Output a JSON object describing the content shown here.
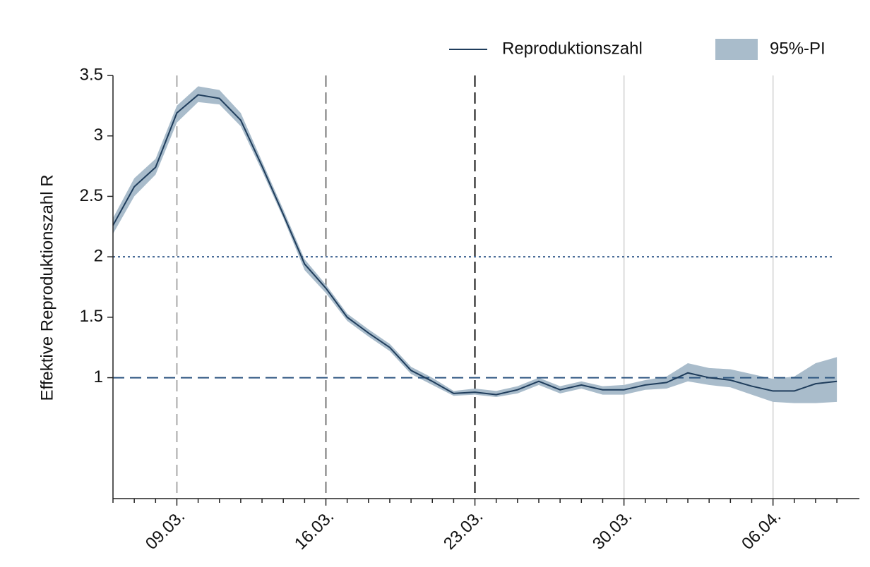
{
  "chart_data": {
    "type": "line",
    "y_label": "Effektive Reproduktionszahl R",
    "categories": [
      null,
      null,
      null,
      "09.03.",
      null,
      null,
      null,
      null,
      null,
      null,
      "16.03.",
      null,
      null,
      null,
      null,
      null,
      null,
      "23.03.",
      null,
      null,
      null,
      null,
      null,
      null,
      "30.03.",
      null,
      null,
      null,
      null,
      null,
      null,
      "06.04.",
      null,
      null,
      null
    ],
    "series": [
      {
        "name": "Reproduktionszahl",
        "color": "#1f3d5c",
        "values": [
          2.26,
          2.58,
          2.74,
          3.19,
          3.34,
          3.31,
          3.13,
          2.75,
          2.35,
          1.94,
          1.74,
          1.5,
          1.37,
          1.25,
          1.06,
          0.97,
          0.87,
          0.88,
          0.86,
          0.9,
          0.97,
          0.9,
          0.94,
          0.9,
          0.9,
          0.94,
          0.96,
          1.04,
          1.0,
          0.98,
          0.93,
          0.89,
          0.89,
          0.95,
          0.97
        ]
      }
    ],
    "band": {
      "name": "95%-PI",
      "color": "#a9bccb",
      "lower": [
        2.19,
        2.5,
        2.68,
        3.11,
        3.28,
        3.26,
        3.08,
        2.71,
        2.32,
        1.89,
        1.7,
        1.47,
        1.34,
        1.22,
        1.03,
        0.94,
        0.85,
        0.86,
        0.84,
        0.87,
        0.94,
        0.87,
        0.91,
        0.86,
        0.86,
        0.9,
        0.91,
        0.97,
        0.94,
        0.92,
        0.86,
        0.8,
        0.79,
        0.79,
        0.8
      ],
      "upper": [
        2.32,
        2.65,
        2.81,
        3.25,
        3.41,
        3.38,
        3.19,
        2.79,
        2.39,
        1.98,
        1.77,
        1.53,
        1.4,
        1.28,
        1.09,
        1.0,
        0.89,
        0.91,
        0.89,
        0.93,
        1.0,
        0.93,
        0.97,
        0.93,
        0.94,
        0.98,
        1.01,
        1.12,
        1.08,
        1.07,
        1.03,
        0.99,
        1.01,
        1.12,
        1.17
      ]
    },
    "ylim": [
      0,
      3.5
    ],
    "yticks": [
      1,
      1.5,
      2,
      2.5,
      3,
      3.5
    ],
    "hlines": [
      {
        "value": 2,
        "style": "dotted",
        "color": "#3a5f8f"
      },
      {
        "value": 1,
        "style": "dashed",
        "color": "#2d5580"
      }
    ],
    "vlines": [
      {
        "at": "09.03.",
        "style": "dashed",
        "color": "#aaaaaa"
      },
      {
        "at": "16.03.",
        "style": "dashed",
        "color": "#777777"
      },
      {
        "at": "23.03.",
        "style": "dashed",
        "color": "#111111"
      },
      {
        "at": "30.03.",
        "style": "solid",
        "color": "#dddddd"
      },
      {
        "at": "06.04.",
        "style": "solid",
        "color": "#dddddd"
      }
    ],
    "legend": "top-right"
  }
}
